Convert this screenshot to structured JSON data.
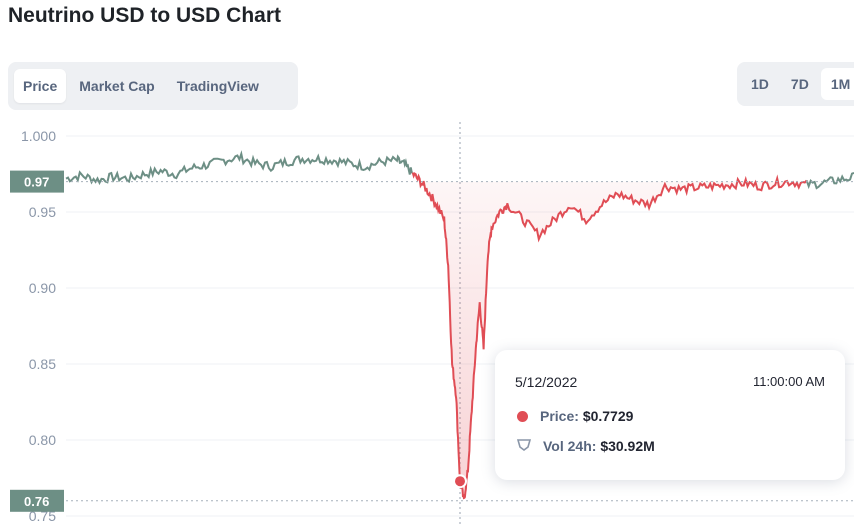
{
  "page": {
    "title": "Neutrino USD to USD Chart"
  },
  "tabs": [
    {
      "label": "Price",
      "active": true
    },
    {
      "label": "Market Cap",
      "active": false
    },
    {
      "label": "TradingView",
      "active": false
    }
  ],
  "ranges": [
    {
      "label": "1D",
      "active": false
    },
    {
      "label": "7D",
      "active": false
    },
    {
      "label": "1M",
      "active": true
    }
  ],
  "tooltip": {
    "date": "5/12/2022",
    "time": "11:00:00 AM",
    "price_label": "Price:",
    "price_value": "$0.7729",
    "vol_label": "Vol 24h:",
    "vol_value": "$30.92M"
  },
  "colors": {
    "up": "#6d8f85",
    "down": "#e04d55",
    "badge": "#6d8f85",
    "axis_text": "#8a96a8"
  },
  "chart_data": {
    "type": "line",
    "title": "Neutrino USD to USD Chart",
    "ylim": [
      0.75,
      1.0
    ],
    "yticks": [
      1.0,
      0.95,
      0.9,
      0.85,
      0.8,
      0.75
    ],
    "ytick_labels": [
      "1.000",
      "0.95",
      "0.90",
      "0.85",
      "0.80",
      "0.75"
    ],
    "reference_lines": [
      {
        "value": 0.97,
        "label": "0.97"
      },
      {
        "value": 0.76,
        "label": "0.76"
      }
    ],
    "highlight": {
      "x": 0.5,
      "y": 0.7729
    },
    "series": [
      {
        "values": [
          [
            0.0,
            0.972
          ],
          [
            0.02,
            0.974
          ],
          [
            0.04,
            0.971
          ],
          [
            0.06,
            0.973
          ],
          [
            0.08,
            0.972
          ],
          [
            0.1,
            0.975
          ],
          [
            0.12,
            0.977
          ],
          [
            0.14,
            0.975
          ],
          [
            0.16,
            0.979
          ],
          [
            0.18,
            0.981
          ],
          [
            0.2,
            0.984
          ],
          [
            0.22,
            0.986
          ],
          [
            0.24,
            0.982
          ],
          [
            0.26,
            0.98
          ],
          [
            0.28,
            0.983
          ],
          [
            0.3,
            0.985
          ],
          [
            0.32,
            0.985
          ],
          [
            0.34,
            0.984
          ],
          [
            0.36,
            0.982
          ],
          [
            0.38,
            0.98
          ],
          [
            0.4,
            0.983
          ],
          [
            0.42,
            0.984
          ],
          [
            0.43,
            0.981
          ],
          [
            0.44,
            0.975
          ],
          [
            0.45,
            0.97
          ],
          [
            0.46,
            0.963
          ],
          [
            0.47,
            0.955
          ],
          [
            0.48,
            0.945
          ],
          [
            0.485,
            0.915
          ],
          [
            0.49,
            0.85
          ],
          [
            0.495,
            0.83
          ],
          [
            0.5,
            0.7729
          ],
          [
            0.505,
            0.76
          ],
          [
            0.51,
            0.78
          ],
          [
            0.515,
            0.82
          ],
          [
            0.52,
            0.86
          ],
          [
            0.525,
            0.89
          ],
          [
            0.53,
            0.86
          ],
          [
            0.535,
            0.92
          ],
          [
            0.54,
            0.94
          ],
          [
            0.55,
            0.95
          ],
          [
            0.56,
            0.955
          ],
          [
            0.58,
            0.945
          ],
          [
            0.6,
            0.935
          ],
          [
            0.62,
            0.945
          ],
          [
            0.64,
            0.955
          ],
          [
            0.66,
            0.945
          ],
          [
            0.68,
            0.955
          ],
          [
            0.7,
            0.962
          ],
          [
            0.72,
            0.958
          ],
          [
            0.74,
            0.955
          ],
          [
            0.76,
            0.967
          ],
          [
            0.78,
            0.965
          ],
          [
            0.8,
            0.966
          ],
          [
            0.82,
            0.967
          ],
          [
            0.84,
            0.968
          ],
          [
            0.86,
            0.969
          ],
          [
            0.88,
            0.967
          ],
          [
            0.9,
            0.969
          ],
          [
            0.92,
            0.97
          ],
          [
            0.94,
            0.968
          ],
          [
            0.96,
            0.969
          ],
          [
            0.98,
            0.971
          ],
          [
            1.0,
            0.973
          ]
        ]
      }
    ]
  }
}
